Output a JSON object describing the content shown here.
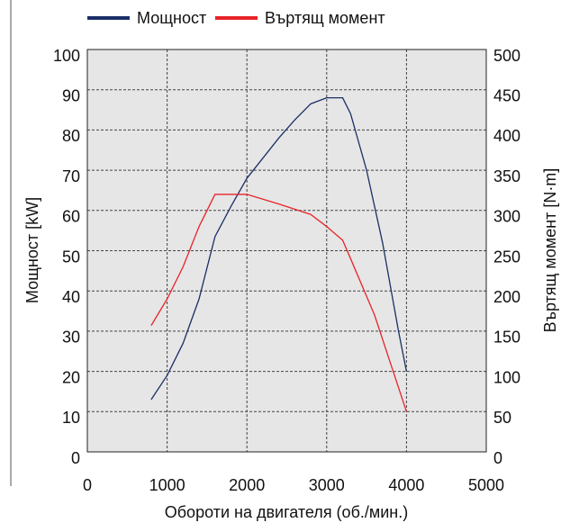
{
  "chart_data": {
    "type": "line",
    "xlabel": "Обороти на двигателя (об./мин.)",
    "ylabel": "Мощност [kW]",
    "y2label": "Въртящ момент [N·m]",
    "xlim": [
      0,
      5000
    ],
    "xticks": [
      0,
      1000,
      2000,
      3000,
      4000,
      5000
    ],
    "ylim": [
      0,
      100
    ],
    "yticks": [
      0,
      10,
      20,
      30,
      40,
      50,
      60,
      70,
      80,
      90,
      100
    ],
    "y2lim": [
      0,
      500
    ],
    "y2ticks": [
      0,
      50,
      100,
      150,
      200,
      250,
      300,
      350,
      400,
      450,
      500
    ],
    "grid": true,
    "legend": "top",
    "series": [
      {
        "name": "Мощност",
        "color": "#1a2f66",
        "axis": "y",
        "x": [
          800,
          1000,
          1200,
          1400,
          1600,
          1800,
          2000,
          2200,
          2400,
          2600,
          2800,
          3000,
          3200,
          3300,
          3500,
          3700,
          3900,
          4000
        ],
        "values": [
          13,
          19,
          27,
          38,
          53.5,
          61,
          68,
          73,
          78,
          82.5,
          86.5,
          88,
          88,
          84,
          70,
          52,
          30,
          20
        ]
      },
      {
        "name": "Въртящ момент",
        "color": "#e8242a",
        "axis": "y2",
        "x": [
          800,
          1000,
          1200,
          1400,
          1600,
          2000,
          2400,
          2800,
          3000,
          3200,
          3300,
          3600,
          3800,
          4000
        ],
        "values": [
          157,
          190,
          230,
          280,
          320,
          320,
          308,
          295,
          280,
          263,
          240,
          170,
          110,
          50
        ]
      }
    ]
  }
}
